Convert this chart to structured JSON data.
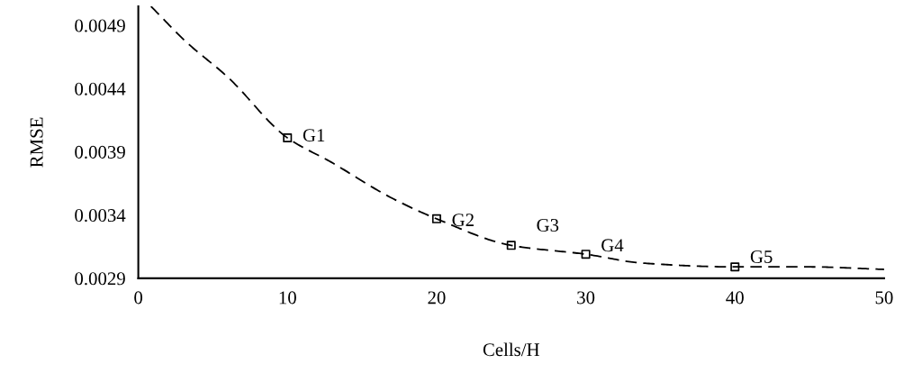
{
  "chart_data": {
    "type": "scatter",
    "xlabel": "Cells/H",
    "ylabel": "RMSE",
    "xlim": [
      0,
      50
    ],
    "xticks": [
      0,
      10,
      20,
      30,
      40,
      50
    ],
    "ylim": [
      0.0029,
      0.00505
    ],
    "yticks": [
      0.0029,
      0.0034,
      0.0039,
      0.0044,
      0.0049
    ],
    "grid": false,
    "legend": false,
    "series": [
      {
        "marker": "square",
        "color": "#000000",
        "x": [
          10,
          20,
          25,
          30,
          40
        ],
        "values": [
          0.00401,
          0.00337,
          0.00316,
          0.00309,
          0.00299
        ]
      },
      {
        "type": "line",
        "line_style": "dashed",
        "marker": "none",
        "color": "#000000",
        "x": [
          0.85,
          3.2,
          6,
          10,
          12.9,
          16.9,
          20,
          25,
          30,
          33.8,
          40,
          44.9,
          50
        ],
        "values": [
          0.00505,
          0.00477,
          0.00449,
          0.00401,
          0.00382,
          0.00354,
          0.00337,
          0.00316,
          0.00309,
          0.00302,
          0.00299,
          0.00299,
          0.00297
        ]
      }
    ],
    "annotations": [
      {
        "text": "G1",
        "x": 10,
        "y": 0.00401
      },
      {
        "text": "G2",
        "x": 20,
        "y": 0.00337
      },
      {
        "text": "G3",
        "x": 25,
        "y": 0.00316
      },
      {
        "text": "G4",
        "x": 30,
        "y": 0.00309
      },
      {
        "text": "G5",
        "x": 40,
        "y": 0.00299
      }
    ]
  }
}
